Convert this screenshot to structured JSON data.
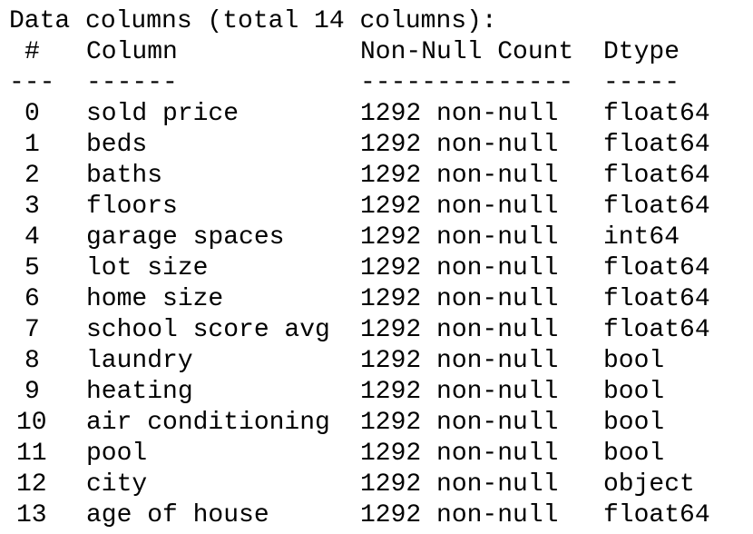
{
  "output": {
    "summary_line": "Data columns (total 14 columns):",
    "headers": {
      "index": "#",
      "column": "Column",
      "non_null_count": "Non-Null Count",
      "dtype": "Dtype"
    },
    "separators": {
      "index": "---",
      "column": "------",
      "non_null_count": "--------------",
      "dtype": "-----"
    },
    "rows": [
      {
        "index": "0",
        "column": "sold price",
        "non_null_count": "1292 non-null",
        "dtype": "float64"
      },
      {
        "index": "1",
        "column": "beds",
        "non_null_count": "1292 non-null",
        "dtype": "float64"
      },
      {
        "index": "2",
        "column": "baths",
        "non_null_count": "1292 non-null",
        "dtype": "float64"
      },
      {
        "index": "3",
        "column": "floors",
        "non_null_count": "1292 non-null",
        "dtype": "float64"
      },
      {
        "index": "4",
        "column": "garage spaces",
        "non_null_count": "1292 non-null",
        "dtype": "int64"
      },
      {
        "index": "5",
        "column": "lot size",
        "non_null_count": "1292 non-null",
        "dtype": "float64"
      },
      {
        "index": "6",
        "column": "home size",
        "non_null_count": "1292 non-null",
        "dtype": "float64"
      },
      {
        "index": "7",
        "column": "school score avg",
        "non_null_count": "1292 non-null",
        "dtype": "float64"
      },
      {
        "index": "8",
        "column": "laundry",
        "non_null_count": "1292 non-null",
        "dtype": "bool"
      },
      {
        "index": "9",
        "column": "heating",
        "non_null_count": "1292 non-null",
        "dtype": "bool"
      },
      {
        "index": "10",
        "column": "air conditioning",
        "non_null_count": "1292 non-null",
        "dtype": "bool"
      },
      {
        "index": "11",
        "column": "pool",
        "non_null_count": "1292 non-null",
        "dtype": "bool"
      },
      {
        "index": "12",
        "column": "city",
        "non_null_count": "1292 non-null",
        "dtype": "object"
      },
      {
        "index": "13",
        "column": "age of house",
        "non_null_count": "1292 non-null",
        "dtype": "float64"
      }
    ]
  }
}
